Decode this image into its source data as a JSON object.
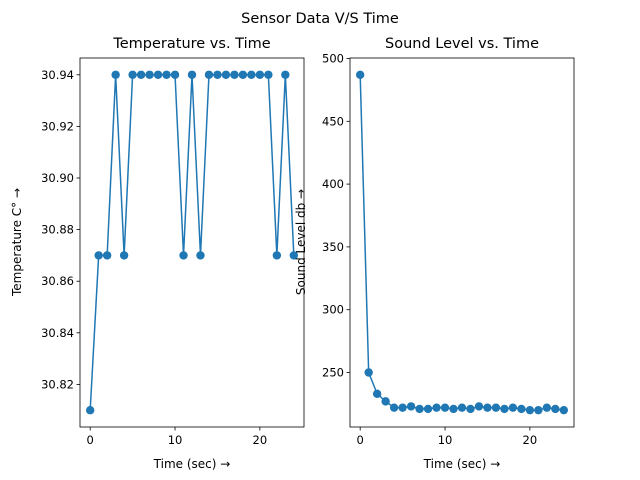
{
  "suptitle": "Sensor Data V/S Time",
  "colors": {
    "series": "#1f77b4",
    "axes": "#000000",
    "background": "#ffffff"
  },
  "chart_data": [
    {
      "type": "line",
      "title": "Temperature vs. Time",
      "xlabel": "Time (sec) →",
      "ylabel": "Temperature C° →",
      "grid": false,
      "marker": "circle",
      "xlim": [
        -1.2,
        25.2
      ],
      "ylim": [
        30.8035,
        30.9465
      ],
      "xticks": [
        0,
        10,
        20
      ],
      "xtick_labels": [
        "0",
        "10",
        "20"
      ],
      "yticks": [
        30.82,
        30.84,
        30.86,
        30.88,
        30.9,
        30.92,
        30.94
      ],
      "ytick_labels": [
        "30.82",
        "30.84",
        "30.86",
        "30.88",
        "30.90",
        "30.92",
        "30.94"
      ],
      "x": [
        0,
        1,
        2,
        3,
        4,
        5,
        6,
        7,
        8,
        9,
        10,
        11,
        12,
        13,
        14,
        15,
        16,
        17,
        18,
        19,
        20,
        21,
        22,
        23,
        24
      ],
      "y": [
        30.81,
        30.87,
        30.87,
        30.94,
        30.87,
        30.94,
        30.94,
        30.94,
        30.94,
        30.94,
        30.94,
        30.87,
        30.94,
        30.87,
        30.94,
        30.94,
        30.94,
        30.94,
        30.94,
        30.94,
        30.94,
        30.94,
        30.87,
        30.94,
        30.87
      ]
    },
    {
      "type": "line",
      "title": "Sound Level vs. Time",
      "xlabel": "Time (sec) →",
      "ylabel": "Sound Level db →",
      "grid": false,
      "marker": "circle",
      "xlim": [
        -1.2,
        25.2
      ],
      "ylim": [
        206.6,
        500.4
      ],
      "xticks": [
        0,
        10,
        20
      ],
      "xtick_labels": [
        "0",
        "10",
        "20"
      ],
      "yticks": [
        250,
        300,
        350,
        400,
        450,
        500
      ],
      "ytick_labels": [
        "250",
        "300",
        "350",
        "400",
        "450",
        "500"
      ],
      "x": [
        0,
        1,
        2,
        3,
        4,
        5,
        6,
        7,
        8,
        9,
        10,
        11,
        12,
        13,
        14,
        15,
        16,
        17,
        18,
        19,
        20,
        21,
        22,
        23,
        24
      ],
      "y": [
        487,
        250,
        233,
        227,
        222,
        222,
        223,
        221,
        221,
        222,
        222,
        221,
        222,
        221,
        223,
        222,
        222,
        221,
        222,
        221,
        220,
        220,
        222,
        221,
        220
      ]
    }
  ]
}
